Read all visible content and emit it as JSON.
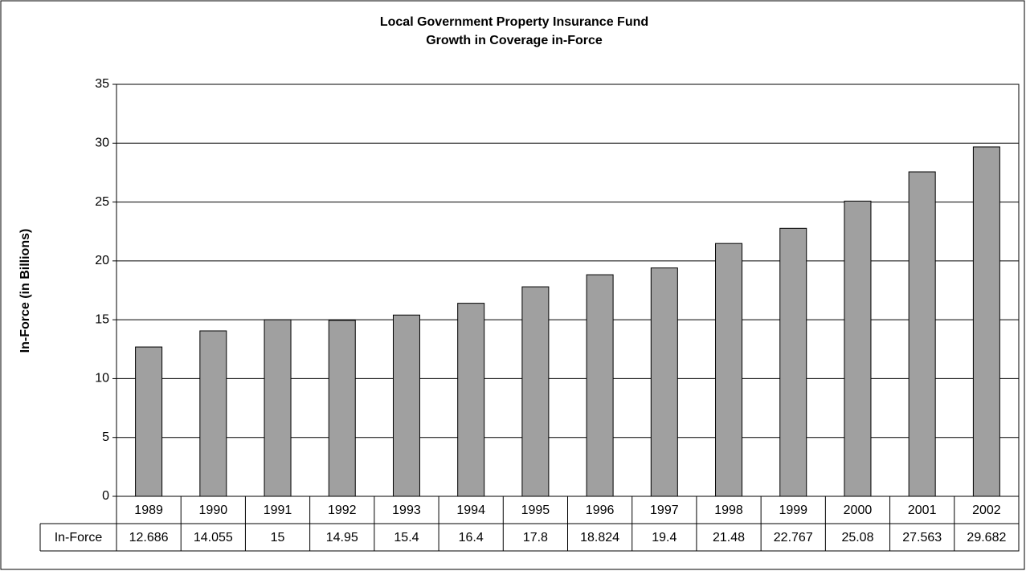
{
  "chart_data": {
    "type": "bar",
    "title": "Local Government Property Insurance Fund",
    "subtitle": "Growth in Coverage in-Force",
    "y_label": "In-Force (in Billions)",
    "categories": [
      "1989",
      "1990",
      "1991",
      "1992",
      "1993",
      "1994",
      "1995",
      "1996",
      "1997",
      "1998",
      "1999",
      "2000",
      "2001",
      "2002"
    ],
    "series": [
      {
        "name": "In-Force",
        "color": "#a0a0a0",
        "values": [
          12.686,
          14.055,
          15,
          14.95,
          15.4,
          16.4,
          17.8,
          18.824,
          19.4,
          21.48,
          22.767,
          25.08,
          27.563,
          29.682
        ]
      }
    ],
    "ylim": [
      0,
      35
    ],
    "yticks": [
      0,
      5,
      10,
      15,
      20,
      25,
      30,
      35
    ],
    "grid": true,
    "data_table": true
  }
}
